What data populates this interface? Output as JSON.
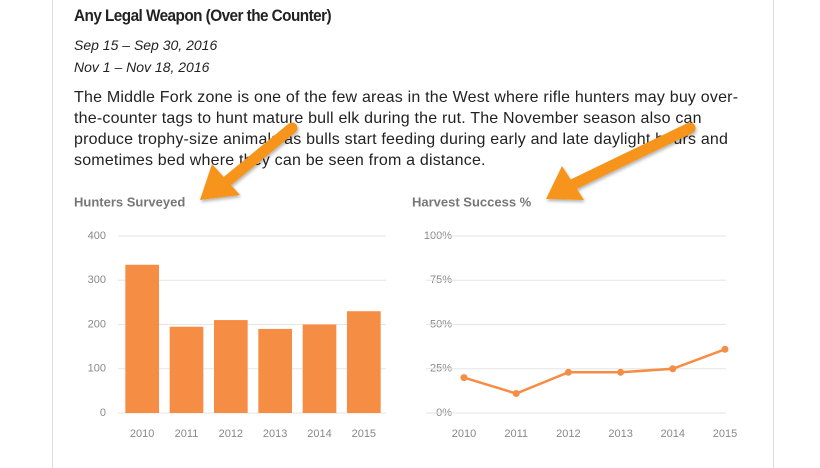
{
  "header": {
    "title": "Any Legal Weapon (Over the Counter)",
    "dates": [
      "Sep 15 – Sep 30, 2016",
      "Nov 1 – Nov 18, 2016"
    ],
    "description": "The Middle Fork zone is one of the few areas in the West where rifle hunters may buy over-the-counter tags to hunt mature bull elk during the rut. The November season also can produce trophy-size animals as bulls start feeding during early and late daylight hours and sometimes bed where they can be seen from a distance."
  },
  "chart_data": [
    {
      "type": "bar",
      "title": "Hunters Surveyed",
      "categories": [
        "2010",
        "2011",
        "2012",
        "2013",
        "2014",
        "2015"
      ],
      "values": [
        335,
        195,
        210,
        190,
        200,
        230
      ],
      "color": "#f68d45",
      "ylim": [
        0,
        400
      ],
      "yticks": [
        0,
        100,
        200,
        300,
        400
      ],
      "grid": true
    },
    {
      "type": "line",
      "title": "Harvest Success %",
      "categories": [
        "2010",
        "2011",
        "2012",
        "2013",
        "2014",
        "2015"
      ],
      "values": [
        20,
        11,
        23,
        23,
        25,
        36
      ],
      "color": "#f68d45",
      "ylim": [
        0,
        100
      ],
      "yticks": [
        {
          "value": 0,
          "label": "0%"
        },
        {
          "value": 25,
          "label": "25%"
        },
        {
          "value": 50,
          "label": "50%"
        },
        {
          "value": 75,
          "label": "75%"
        },
        {
          "value": 100,
          "label": "100%"
        }
      ],
      "grid": true
    }
  ]
}
